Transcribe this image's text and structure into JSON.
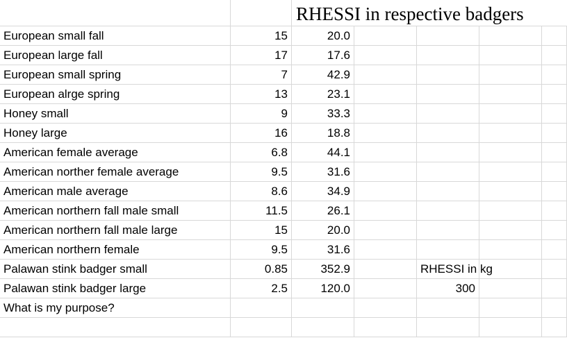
{
  "title": "RHESSI in respective badgers",
  "rows": [
    {
      "label": "European small fall",
      "a": "15",
      "b": "20.0"
    },
    {
      "label": "European large fall",
      "a": "17",
      "b": "17.6"
    },
    {
      "label": "European small spring",
      "a": "7",
      "b": "42.9"
    },
    {
      "label": "European alrge spring",
      "a": "13",
      "b": "23.1"
    },
    {
      "label": "Honey small",
      "a": "9",
      "b": "33.3"
    },
    {
      "label": "Honey large",
      "a": "16",
      "b": "18.8"
    },
    {
      "label": "American female average",
      "a": "6.8",
      "b": "44.1"
    },
    {
      "label": "American norther female average",
      "a": "9.5",
      "b": "31.6"
    },
    {
      "label": "American male average",
      "a": "8.6",
      "b": "34.9"
    },
    {
      "label": "American northern fall male small",
      "a": "11.5",
      "b": "26.1"
    },
    {
      "label": "American northern fall male large",
      "a": "15",
      "b": "20.0"
    },
    {
      "label": "American northern female",
      "a": "9.5",
      "b": "31.6"
    },
    {
      "label": "Palawan stink badger small",
      "a": "0.85",
      "b": "352.9"
    },
    {
      "label": "Palawan stink badger large",
      "a": "2.5",
      "b": "120.0"
    },
    {
      "label": "What is my purpose?",
      "a": "",
      "b": ""
    }
  ],
  "side": {
    "label": "RHESSI in kg",
    "value": "300"
  }
}
